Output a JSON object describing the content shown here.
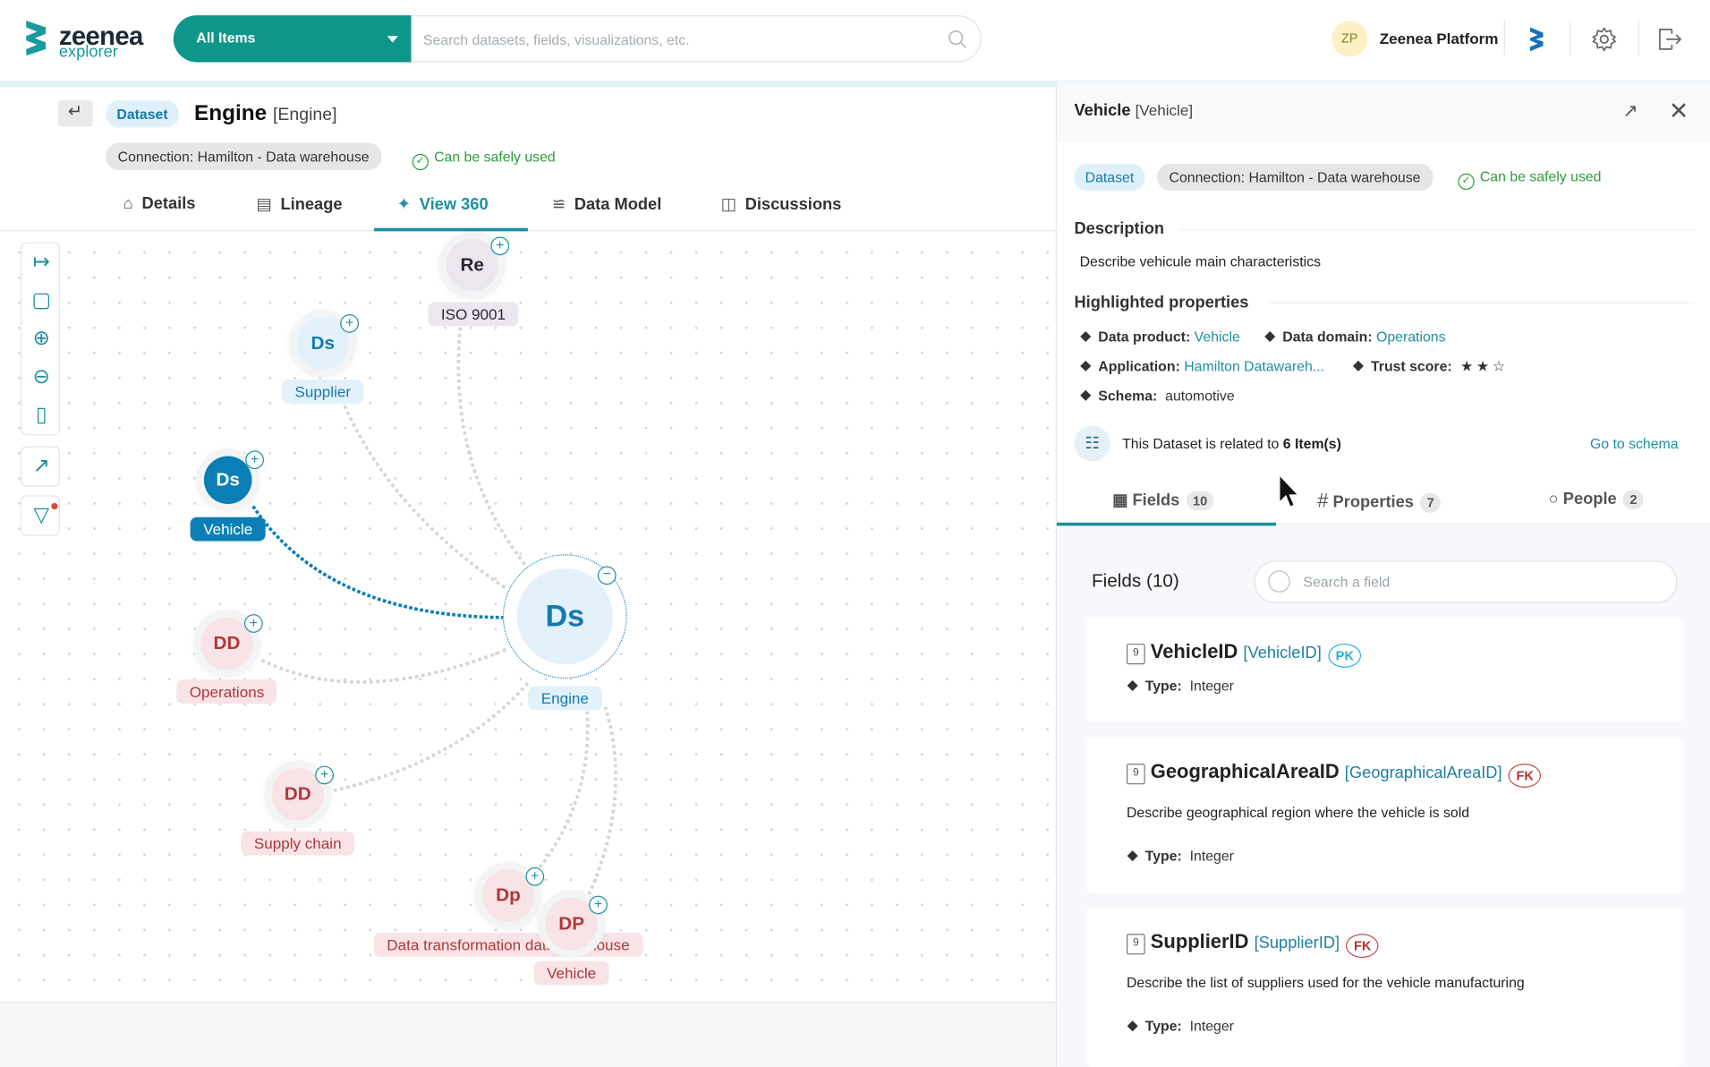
{
  "header": {
    "logo": {
      "word": "zeenea",
      "sub": "explorer"
    },
    "scope_select": "All Items",
    "search_placeholder": "Search datasets, fields, visualizations, etc.",
    "user_initials": "ZP",
    "platform_name": "Zeenea Platform"
  },
  "item": {
    "type_badge": "Dataset",
    "name": "Engine",
    "technical_name": "[Engine]",
    "connection": "Connection: Hamilton - Data warehouse",
    "status": "Can be safely used",
    "tabs": [
      {
        "label": "Details",
        "icon": "home-icon"
      },
      {
        "label": "Lineage",
        "icon": "lineage-icon"
      },
      {
        "label": "View 360",
        "icon": "network-icon",
        "active": true
      },
      {
        "label": "Data Model",
        "icon": "data-model-icon"
      },
      {
        "label": "Discussions",
        "icon": "chat-icon"
      }
    ]
  },
  "graph": {
    "nodes": [
      {
        "abbr": "Re",
        "label": "ISO 9001",
        "kind": "reference"
      },
      {
        "abbr": "Ds",
        "label": "Supplier",
        "kind": "dataset"
      },
      {
        "abbr": "Ds",
        "label": "Vehicle",
        "kind": "dataset",
        "selected": true
      },
      {
        "abbr": "DD",
        "label": "Operations",
        "kind": "data-domain"
      },
      {
        "abbr": "Ds",
        "label": "Engine",
        "kind": "dataset",
        "center": true
      },
      {
        "abbr": "DD",
        "label": "Supply chain",
        "kind": "data-domain"
      },
      {
        "abbr": "Dp",
        "label": "Data transformation datawarehouse",
        "kind": "data-process"
      },
      {
        "abbr": "DP",
        "label": "Vehicle",
        "kind": "data-product"
      }
    ],
    "colors": {
      "dataset": "#137bb0",
      "data-domain": "#b0363a",
      "reference": "#2b2438",
      "selected_edge": "#0a7fb5"
    }
  },
  "panel": {
    "title": "Vehicle",
    "technical_name": "[Vehicle]",
    "type_badge": "Dataset",
    "connection": "Connection: Hamilton - Data warehouse",
    "status": "Can be safely used",
    "description_heading": "Description",
    "description": "Describe vehicule main characteristics",
    "highlighted_heading": "Highlighted properties",
    "properties": {
      "data_product": {
        "label": "Data product:",
        "value": "Vehicle"
      },
      "data_domain": {
        "label": "Data domain:",
        "value": "Operations"
      },
      "application": {
        "label": "Application:",
        "value": "Hamilton Datawareh..."
      },
      "trust_score": {
        "label": "Trust score:",
        "stars": 2,
        "max": 3
      },
      "schema": {
        "label": "Schema:",
        "value": "automotive"
      }
    },
    "related": {
      "prefix": "This Dataset is related to ",
      "count": "6 Item(s)",
      "link": "Go to schema"
    },
    "tabs": [
      {
        "label": "Fields",
        "count": "10",
        "active": true
      },
      {
        "label": "Properties",
        "count": "7"
      },
      {
        "label": "People",
        "count": "2"
      }
    ],
    "fields_title": "Fields (10)",
    "field_search_placeholder": "Search a field",
    "fields": [
      {
        "name": "VehicleID",
        "tech": "[VehicleID]",
        "key": "PK",
        "description": "",
        "type_label": "Type:",
        "type": "Integer"
      },
      {
        "name": "GeographicalAreaID",
        "tech": "[GeographicalAreaID]",
        "key": "FK",
        "description": "Describe geographical region where the vehicle is sold",
        "type_label": "Type:",
        "type": "Integer"
      },
      {
        "name": "SupplierID",
        "tech": "[SupplierID]",
        "key": "FK",
        "description": "Describe the list of suppliers used for the vehicle manufacturing",
        "type_label": "Type:",
        "type": "Integer"
      }
    ],
    "field_type_glyph": "9"
  }
}
